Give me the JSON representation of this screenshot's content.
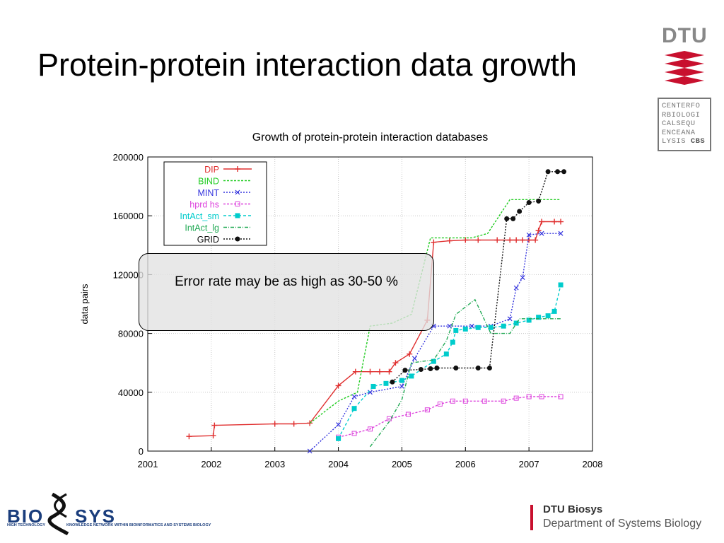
{
  "slide": {
    "title": "Protein-protein interaction data growth",
    "callout": "Error rate may be as high as 30-50 %"
  },
  "logos": {
    "dtu": "DTU",
    "cbs_lines": [
      "CENTERFO",
      "RBIOLOGI",
      "CALSEQU",
      "ENCEANA",
      "LYSIS"
    ],
    "cbs_bold": "CBS",
    "bio_left": "BIO",
    "bio_right": "SYS",
    "bio_tag_left": "HIGH TECHNOLOGY",
    "bio_tag_right": "KNOWLEDGE NETWORK WITHIN BIOINFORMATICS AND SYSTEMS BIOLOGY"
  },
  "footer": {
    "org": "DTU Biosys",
    "department": "Department of Systems Biology"
  },
  "colors": {
    "dtu_red": "#c8102e",
    "logo_grey": "#888888",
    "callout_fill": "#e1e1e1"
  },
  "chart_data": {
    "type": "line",
    "title": "Growth of protein-protein interaction databases",
    "xlabel": "",
    "ylabel": "data pairs",
    "xlim": [
      2001,
      2008
    ],
    "ylim": [
      0,
      200000
    ],
    "xticks": [
      "2001",
      "2002",
      "2003",
      "2004",
      "2005",
      "2006",
      "2007",
      "2008"
    ],
    "yticks": [
      "0",
      "40000",
      "80000",
      "120000",
      "160000",
      "200000"
    ],
    "grid": true,
    "legend_position": "top-left",
    "series": [
      {
        "name": "DIP",
        "color": "#e03030",
        "dash": "",
        "marker": "plus",
        "points": [
          [
            2001.65,
            10000
          ],
          [
            2002.03,
            10500
          ],
          [
            2002.05,
            17500
          ],
          [
            2003.0,
            18500
          ],
          [
            2003.3,
            18500
          ],
          [
            2003.55,
            19000
          ],
          [
            2004.0,
            44500
          ],
          [
            2004.27,
            54000
          ],
          [
            2004.5,
            54000
          ],
          [
            2004.65,
            54000
          ],
          [
            2004.8,
            54000
          ],
          [
            2004.9,
            60000
          ],
          [
            2005.12,
            66000
          ],
          [
            2005.4,
            89000
          ],
          [
            2005.5,
            142000
          ],
          [
            2005.75,
            143000
          ],
          [
            2006.0,
            143500
          ],
          [
            2006.2,
            143500
          ],
          [
            2006.5,
            143500
          ],
          [
            2006.7,
            143500
          ],
          [
            2006.8,
            143500
          ],
          [
            2006.9,
            143500
          ],
          [
            2007.0,
            143500
          ],
          [
            2007.1,
            143500
          ],
          [
            2007.15,
            150000
          ],
          [
            2007.2,
            156000
          ],
          [
            2007.4,
            156000
          ],
          [
            2007.5,
            156000
          ]
        ]
      },
      {
        "name": "BIND",
        "color": "#22cc22",
        "dash": "3,2",
        "marker": "none",
        "points": [
          [
            2003.55,
            19000
          ],
          [
            2004.0,
            34000
          ],
          [
            2004.3,
            40000
          ],
          [
            2004.5,
            85000
          ],
          [
            2004.85,
            87000
          ],
          [
            2005.15,
            93000
          ],
          [
            2005.45,
            145000
          ],
          [
            2005.8,
            145000
          ],
          [
            2006.1,
            145000
          ],
          [
            2006.35,
            148000
          ],
          [
            2006.7,
            171000
          ],
          [
            2007.0,
            171000
          ],
          [
            2007.5,
            171000
          ]
        ]
      },
      {
        "name": "MINT",
        "color": "#3333dd",
        "dash": "2,2",
        "marker": "x",
        "points": [
          [
            2003.55,
            0
          ],
          [
            2004.0,
            18000
          ],
          [
            2004.25,
            37000
          ],
          [
            2004.5,
            40000
          ],
          [
            2005.0,
            44000
          ],
          [
            2005.2,
            63000
          ],
          [
            2005.5,
            85000
          ],
          [
            2005.75,
            85000
          ],
          [
            2006.1,
            85000
          ],
          [
            2006.4,
            85000
          ],
          [
            2006.7,
            90000
          ],
          [
            2006.8,
            111000
          ],
          [
            2006.9,
            118000
          ],
          [
            2007.0,
            147000
          ],
          [
            2007.2,
            148000
          ],
          [
            2007.5,
            148000
          ]
        ]
      },
      {
        "name": "hprd hs",
        "color": "#dd44dd",
        "dash": "3,2",
        "marker": "square-open",
        "points": [
          [
            2004.0,
            9500
          ],
          [
            2004.25,
            12000
          ],
          [
            2004.5,
            15000
          ],
          [
            2004.8,
            22000
          ],
          [
            2005.1,
            25000
          ],
          [
            2005.4,
            28000
          ],
          [
            2005.6,
            32000
          ],
          [
            2005.8,
            34000
          ],
          [
            2006.0,
            34000
          ],
          [
            2006.3,
            34000
          ],
          [
            2006.6,
            34000
          ],
          [
            2006.8,
            36000
          ],
          [
            2007.0,
            37000
          ],
          [
            2007.2,
            37000
          ],
          [
            2007.5,
            37000
          ]
        ]
      },
      {
        "name": "IntAct_sm",
        "color": "#00cccc",
        "dash": "4,3",
        "marker": "square",
        "points": [
          [
            2004.0,
            8500
          ],
          [
            2004.25,
            29000
          ],
          [
            2004.55,
            44000
          ],
          [
            2004.75,
            46000
          ],
          [
            2005.0,
            48000
          ],
          [
            2005.15,
            51000
          ],
          [
            2005.5,
            61000
          ],
          [
            2005.7,
            66000
          ],
          [
            2005.8,
            74000
          ],
          [
            2005.85,
            82000
          ],
          [
            2006.0,
            83000
          ],
          [
            2006.2,
            84000
          ],
          [
            2006.4,
            84000
          ],
          [
            2006.6,
            85000
          ],
          [
            2006.8,
            87000
          ],
          [
            2007.0,
            89000
          ],
          [
            2007.15,
            91000
          ],
          [
            2007.3,
            92000
          ],
          [
            2007.4,
            95000
          ],
          [
            2007.5,
            113000
          ]
        ]
      },
      {
        "name": "IntAct_lg",
        "color": "#22aa55",
        "dash": "5,2,1,2",
        "marker": "none",
        "points": [
          [
            2004.5,
            3000
          ],
          [
            2004.8,
            20000
          ],
          [
            2005.0,
            35000
          ],
          [
            2005.15,
            60000
          ],
          [
            2005.5,
            62000
          ],
          [
            2005.7,
            75000
          ],
          [
            2005.85,
            93000
          ],
          [
            2006.15,
            103000
          ],
          [
            2006.4,
            80000
          ],
          [
            2006.7,
            80000
          ],
          [
            2006.85,
            90000
          ],
          [
            2007.0,
            90000
          ],
          [
            2007.5,
            90000
          ]
        ]
      },
      {
        "name": "GRID",
        "color": "#111111",
        "dash": "2,2",
        "marker": "circle",
        "points": [
          [
            2004.85,
            47000
          ],
          [
            2005.05,
            55000
          ],
          [
            2005.3,
            55500
          ],
          [
            2005.45,
            56000
          ],
          [
            2005.55,
            56500
          ],
          [
            2005.85,
            56500
          ],
          [
            2006.2,
            56500
          ],
          [
            2006.38,
            56500
          ],
          [
            2006.65,
            158000
          ],
          [
            2006.75,
            158000
          ],
          [
            2006.85,
            163000
          ],
          [
            2007.0,
            169000
          ],
          [
            2007.15,
            170000
          ],
          [
            2007.3,
            190000
          ],
          [
            2007.45,
            190000
          ],
          [
            2007.55,
            190000
          ]
        ]
      }
    ]
  }
}
